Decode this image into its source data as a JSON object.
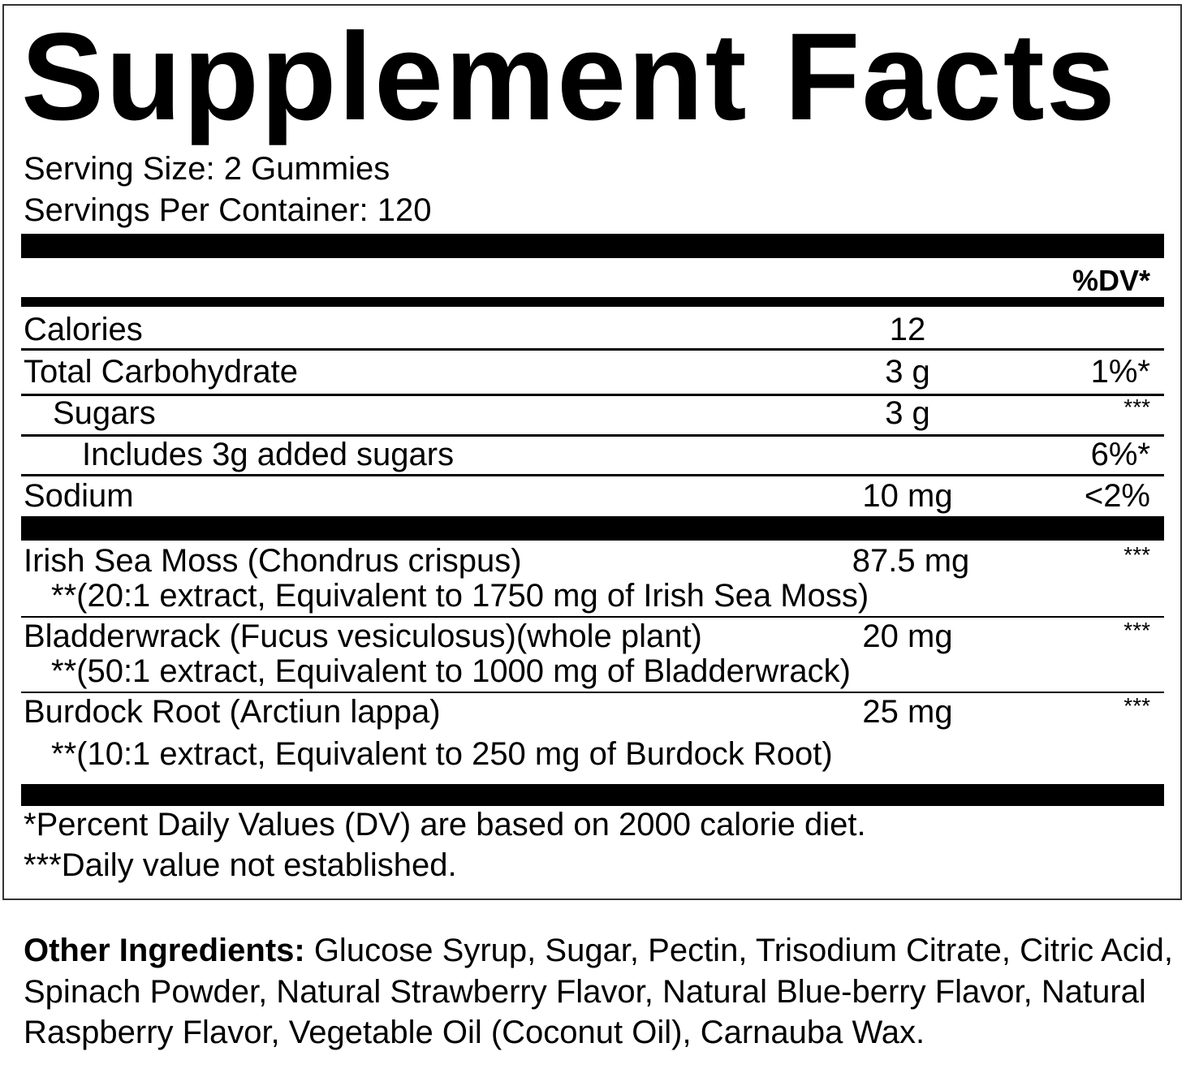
{
  "title": "Supplement Facts",
  "serving_size": "Serving Size: 2 Gummies",
  "servings_per_container": "Servings Per Container: 120",
  "dv_header": "%DV*",
  "nutrients": [
    {
      "name": "Calories",
      "amount": "12",
      "dv": ""
    },
    {
      "name": "Total Carbohydrate",
      "amount": "3 g",
      "dv": "1%*"
    },
    {
      "name": "Sugars",
      "amount": "3 g",
      "dv": "***"
    },
    {
      "name": "Includes 3g added sugars",
      "amount": "",
      "dv": "6%*"
    },
    {
      "name": "Sodium",
      "amount": "10 mg",
      "dv": "<2%"
    }
  ],
  "ingredients": [
    {
      "name": "Irish Sea Moss (Chondrus crispus)",
      "amount": "87.5 mg",
      "dv": "***",
      "note": "**(20:1 extract, Equivalent to 1750 mg of Irish Sea Moss)"
    },
    {
      "name": "Bladderwrack (Fucus vesiculosus)(whole plant)",
      "amount": "20 mg",
      "dv": "***",
      "note": "**(50:1 extract, Equivalent to 1000 mg of Bladderwrack)"
    },
    {
      "name": "Burdock Root (Arctiun lappa)",
      "amount": "25 mg",
      "dv": "***",
      "note": "**(10:1 extract, Equivalent to 250 mg of Burdock Root)"
    }
  ],
  "footnotes": [
    "*Percent Daily Values (DV) are based on 2000 calorie diet.",
    "***Daily value not established."
  ],
  "other_ingredients": {
    "label": "Other Ingredients:",
    "text": " Glucose Syrup, Sugar, Pectin, Trisodium Citrate, Citric Acid, Spinach Powder, Natural Strawberry Flavor, Natural Blue-berry Flavor, Natural Raspberry Flavor, Vegetable Oil (Coconut Oil), Carnauba Wax."
  }
}
